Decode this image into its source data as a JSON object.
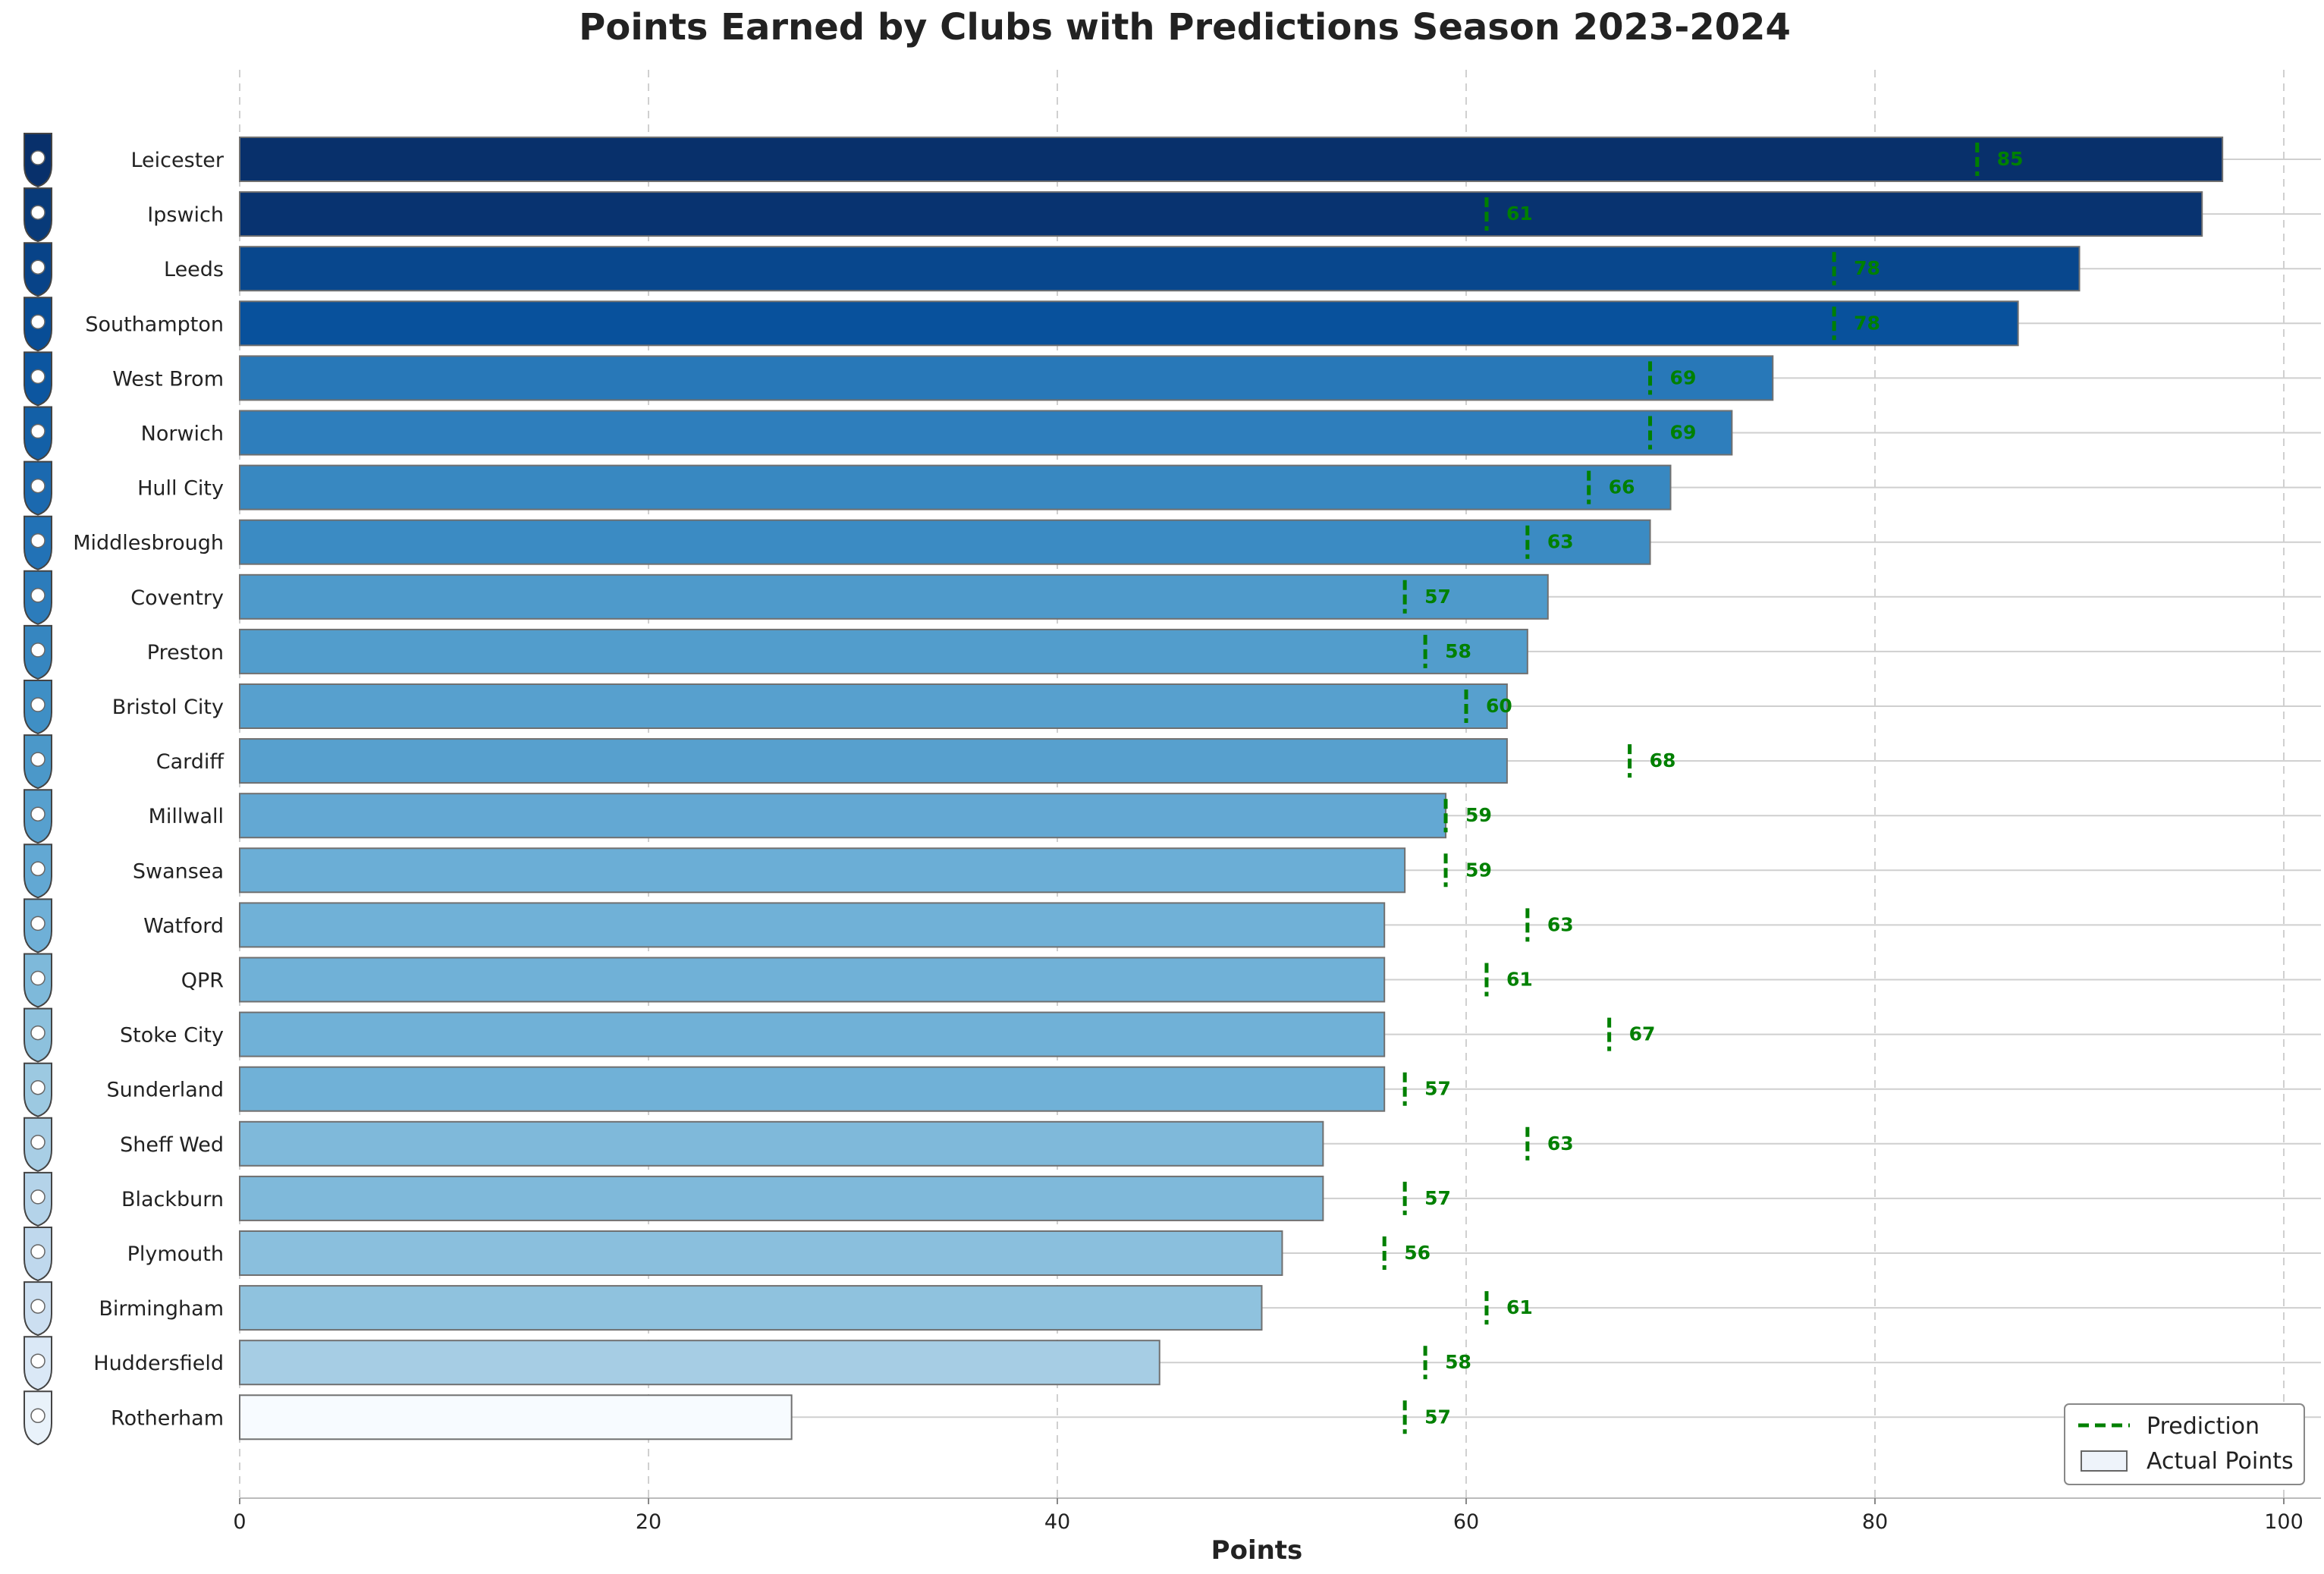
{
  "chart_data": {
    "type": "bar",
    "orientation": "horizontal",
    "title": "Points Earned by Clubs with Predictions Season 2023-2024",
    "xlabel": "Points",
    "ylabel": "",
    "xlim": [
      0,
      102
    ],
    "xticks": [
      0,
      20,
      40,
      60,
      80,
      100
    ],
    "grid": "vertical-dashed",
    "legend_position": "bottom-right",
    "categories": [
      "Leicester",
      "Ipswich",
      "Leeds",
      "Southampton",
      "West Brom",
      "Norwich",
      "Hull City",
      "Middlesbrough",
      "Coventry",
      "Preston",
      "Bristol City",
      "Cardiff",
      "Millwall",
      "Swansea",
      "Watford",
      "QPR",
      "Stoke City",
      "Sunderland",
      "Sheff Wed",
      "Blackburn",
      "Plymouth",
      "Birmingham",
      "Huddersfield",
      "Rotherham"
    ],
    "series": [
      {
        "name": "Actual Points",
        "values": [
          97,
          96,
          90,
          87,
          75,
          73,
          70,
          69,
          64,
          63,
          62,
          62,
          59,
          57,
          56,
          56,
          56,
          56,
          53,
          53,
          51,
          50,
          45,
          27
        ]
      },
      {
        "name": "Prediction",
        "values": [
          85,
          61,
          78,
          78,
          69,
          69,
          66,
          63,
          57,
          58,
          60,
          68,
          59,
          59,
          63,
          61,
          67,
          57,
          63,
          57,
          56,
          61,
          58,
          57
        ]
      }
    ],
    "colors": {
      "bar_scale": [
        "#08306b",
        "#08519c",
        "#2171b5",
        "#4292c6",
        "#6baed6",
        "#9ecae1",
        "#c6dbef",
        "#f7fbff"
      ],
      "bar_edge": "#707070",
      "prediction": "#008000",
      "grid": "#d0d0d0",
      "row_line": "#cfcfcf"
    },
    "team_badges": [
      "leicester-badge-icon",
      "ipswich-badge-icon",
      "leeds-badge-icon",
      "southampton-badge-icon",
      "west-brom-badge-icon",
      "norwich-badge-icon",
      "hull-city-badge-icon",
      "middlesbrough-badge-icon",
      "coventry-badge-icon",
      "preston-badge-icon",
      "bristol-city-badge-icon",
      "cardiff-badge-icon",
      "millwall-badge-icon",
      "swansea-badge-icon",
      "watford-badge-icon",
      "qpr-badge-icon",
      "stoke-city-badge-icon",
      "sunderland-badge-icon",
      "sheff-wed-badge-icon",
      "blackburn-badge-icon",
      "plymouth-badge-icon",
      "birmingham-badge-icon",
      "huddersfield-badge-icon",
      "rotherham-badge-icon"
    ]
  }
}
